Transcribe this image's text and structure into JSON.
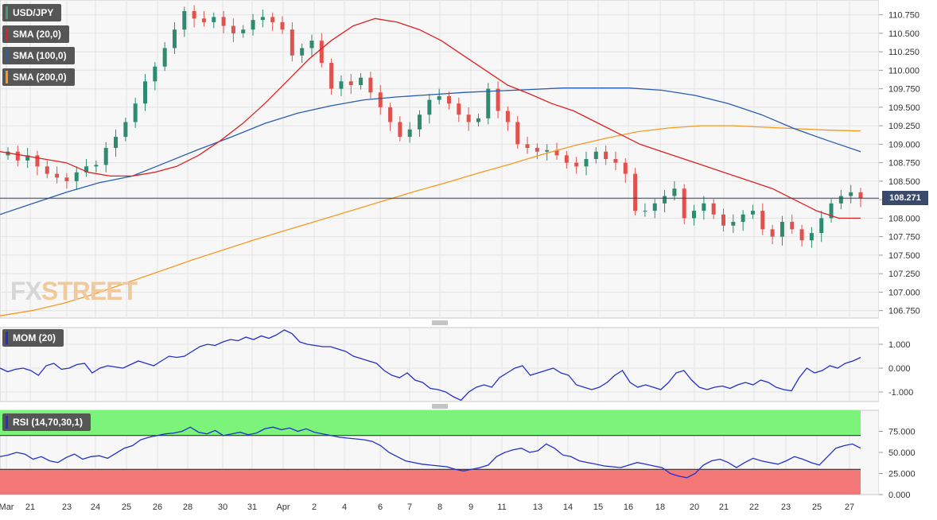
{
  "pair": "USD/JPY",
  "legends": {
    "pair": "USD/JPY",
    "sma20": "SMA (20,0)",
    "sma100": "SMA (100,0)",
    "sma200": "SMA (200,0)",
    "mom": "MOM (20)",
    "rsi": "RSI (14,70,30,1)"
  },
  "colors": {
    "up_candle": "#2e8b6f",
    "down_candle": "#e0524e",
    "sma20": "#e02020",
    "sma100": "#2a5db0",
    "sma200": "#f59a23",
    "momentum": "#2330c8",
    "rsi": "#2330c8",
    "rsi_overbought_zone": "#7cf47c",
    "rsi_oversold_zone": "#f57878",
    "current_price_line": "#2f3e5e"
  },
  "brand": {
    "part1": "FX",
    "part2": "STREET"
  },
  "current_price": "108.271",
  "chart_data": [
    {
      "type": "candlestick",
      "title": "USD/JPY",
      "price_axis_ticks": [
        "110.750",
        "110.500",
        "110.250",
        "110.000",
        "109.750",
        "109.500",
        "109.250",
        "109.000",
        "108.750",
        "108.500",
        "108.250",
        "108.000",
        "107.750",
        "107.500",
        "107.250",
        "107.000",
        "106.750"
      ],
      "ylim": [
        106.65,
        110.95
      ],
      "x_tick_labels": [
        "Mar",
        "21",
        "23",
        "24",
        "25",
        "26",
        "28",
        "30",
        "31",
        "Apr",
        "2",
        "4",
        "6",
        "7",
        "8",
        "9",
        "11",
        "13",
        "14",
        "15",
        "16",
        "18",
        "20",
        "21",
        "22",
        "23",
        "25",
        "27"
      ],
      "current_price": 108.271,
      "sma20": [
        108.9,
        108.85,
        108.8,
        108.75,
        108.62,
        108.57,
        108.57,
        108.62,
        108.7,
        108.85,
        109.05,
        109.28,
        109.55,
        109.85,
        110.15,
        110.4,
        110.6,
        110.7,
        110.65,
        110.55,
        110.4,
        110.2,
        110.0,
        109.8,
        109.68,
        109.55,
        109.45,
        109.3,
        109.15,
        109.0,
        108.9,
        108.8,
        108.7,
        108.6,
        108.5,
        108.4,
        108.25,
        108.1,
        108.0,
        108.0
      ],
      "sma100": [
        108.05,
        108.2,
        108.35,
        108.48,
        108.57,
        108.75,
        108.93,
        109.1,
        109.28,
        109.42,
        109.52,
        109.6,
        109.64,
        109.67,
        109.7,
        109.72,
        109.74,
        109.76,
        109.76,
        109.76,
        109.73,
        109.66,
        109.55,
        109.4,
        109.21,
        109.05,
        108.9
      ],
      "sma200": [
        106.68,
        106.75,
        106.85,
        106.98,
        107.13,
        107.28,
        107.43,
        107.57,
        107.71,
        107.84,
        107.97,
        108.1,
        108.23,
        108.36,
        108.48,
        108.61,
        108.73,
        108.86,
        108.98,
        109.08,
        109.17,
        109.22,
        109.25,
        109.25,
        109.23,
        109.21,
        109.19,
        109.18
      ]
    },
    {
      "type": "line",
      "title": "MOM (20)",
      "axis_ticks": [
        "1.000",
        "0.000",
        "-1.000"
      ],
      "ylim": [
        -1.4,
        1.7
      ],
      "series": [
        {
          "name": "MOM (20)",
          "values": [
            0.0,
            -0.15,
            -0.05,
            0.0,
            -0.1,
            -0.3,
            0.1,
            0.2,
            -0.05,
            0.0,
            0.15,
            0.2,
            -0.2,
            0.0,
            0.1,
            0.05,
            0.0,
            0.15,
            0.3,
            0.2,
            0.1,
            0.3,
            0.5,
            0.45,
            0.5,
            0.7,
            0.9,
            1.0,
            0.95,
            1.1,
            1.2,
            1.15,
            1.3,
            1.2,
            1.35,
            1.25,
            1.4,
            1.6,
            1.45,
            1.1,
            1.0,
            0.95,
            0.9,
            0.9,
            0.8,
            0.7,
            0.5,
            0.4,
            0.3,
            0.2,
            -0.1,
            -0.3,
            -0.4,
            -0.2,
            -0.5,
            -0.6,
            -0.85,
            -0.9,
            -1.0,
            -1.2,
            -1.35,
            -1.0,
            -0.8,
            -0.7,
            -0.8,
            -0.4,
            -0.2,
            0.0,
            0.1,
            -0.3,
            -0.2,
            -0.1,
            0.0,
            -0.2,
            -0.3,
            -0.7,
            -0.8,
            -0.9,
            -0.8,
            -0.6,
            -0.3,
            -0.1,
            -0.6,
            -0.8,
            -0.7,
            -0.8,
            -0.9,
            -0.6,
            -0.2,
            -0.1,
            -0.5,
            -0.8,
            -0.9,
            -0.8,
            -0.75,
            -0.85,
            -0.7,
            -0.6,
            -0.7,
            -0.5,
            -0.6,
            -0.8,
            -0.9,
            -0.95,
            -0.4,
            0.0,
            -0.2,
            -0.1,
            0.1,
            0.0,
            0.2,
            0.3,
            0.45
          ]
        }
      ]
    },
    {
      "type": "line",
      "title": "RSI (14,70,30,1)",
      "axis_ticks": [
        "75.000",
        "50.000",
        "25.000",
        "0.000"
      ],
      "ylim": [
        0,
        100
      ],
      "overbought": 70,
      "oversold": 30,
      "series": [
        {
          "name": "RSI (14,70,30,1)",
          "values": [
            45,
            47,
            50,
            48,
            42,
            45,
            40,
            38,
            44,
            48,
            42,
            45,
            46,
            43,
            49,
            55,
            58,
            65,
            68,
            70,
            72,
            73,
            75,
            80,
            74,
            72,
            76,
            70,
            72,
            74,
            71,
            73,
            78,
            80,
            77,
            79,
            75,
            78,
            74,
            72,
            70,
            68,
            67,
            66,
            65,
            63,
            58,
            50,
            45,
            40,
            38,
            36,
            35,
            34,
            33,
            30,
            28,
            30,
            32,
            35,
            45,
            50,
            53,
            55,
            50,
            52,
            60,
            55,
            47,
            45,
            40,
            38,
            36,
            34,
            33,
            32,
            35,
            38,
            36,
            34,
            32,
            25,
            22,
            20,
            25,
            35,
            40,
            42,
            38,
            32,
            38,
            43,
            40,
            38,
            36,
            40,
            45,
            42,
            38,
            35,
            45,
            55,
            58,
            60,
            55
          ]
        }
      ]
    }
  ]
}
